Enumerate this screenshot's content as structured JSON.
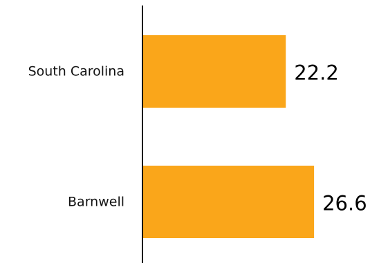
{
  "chart_data": {
    "type": "bar",
    "orientation": "horizontal",
    "categories": [
      "South Carolina",
      "Barnwell"
    ],
    "values": [
      22.2,
      26.6
    ],
    "value_labels": [
      "22.2",
      "26.6"
    ],
    "bar_color": "#FAA61A",
    "axis_color": "#000000",
    "grid": false,
    "legend": "none",
    "title": "",
    "xlabel": "",
    "ylabel": ""
  }
}
